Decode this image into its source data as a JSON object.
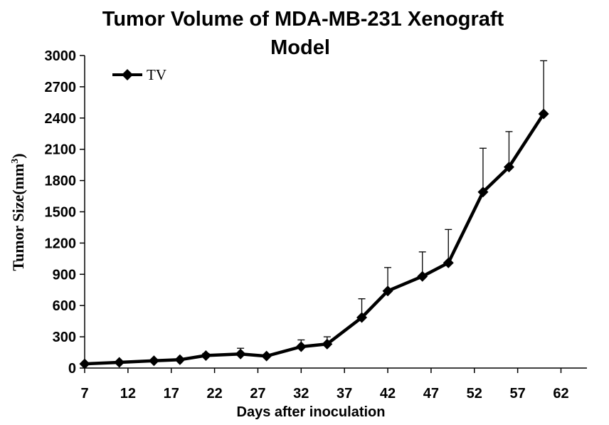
{
  "chart_data": {
    "type": "line",
    "title_line1": "Tumor Volume of MDA-MB-231  Xenograft",
    "title_line2": "Model",
    "xlabel": "Days after inoculation",
    "ylabel": "Tumor Size(mm",
    "ylabel_sup": "3",
    "ylabel_close": ")",
    "xlim": [
      7,
      65
    ],
    "ylim": [
      0,
      3000
    ],
    "x_ticks": [
      7,
      12,
      17,
      22,
      27,
      32,
      37,
      42,
      47,
      52,
      57,
      62
    ],
    "y_ticks": [
      0,
      300,
      600,
      900,
      1200,
      1500,
      1800,
      2100,
      2400,
      2700,
      3000
    ],
    "legend_position": "top-left",
    "grid": false,
    "series": [
      {
        "name": "TV",
        "color": "#000000",
        "marker": "diamond",
        "x": [
          7,
          11,
          15,
          18,
          21,
          25,
          28,
          32,
          35,
          39,
          42,
          46,
          49,
          53,
          56,
          60
        ],
        "y": [
          40,
          55,
          70,
          80,
          120,
          135,
          115,
          205,
          230,
          485,
          740,
          880,
          1010,
          1690,
          1930,
          2440
        ],
        "error_plus": [
          0,
          0,
          0,
          0,
          20,
          55,
          15,
          65,
          70,
          180,
          225,
          235,
          320,
          420,
          340,
          510
        ]
      }
    ]
  }
}
